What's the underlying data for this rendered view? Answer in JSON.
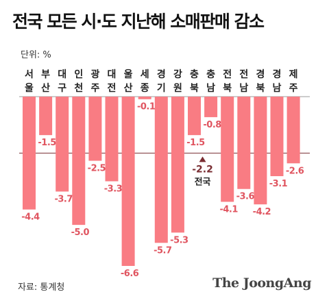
{
  "chart_data": {
    "type": "bar",
    "title": "전국 모든 시·도 지난해 소매판매 감소",
    "unit_label": "단위: %",
    "categories": [
      "서울",
      "부산",
      "대구",
      "인천",
      "광주",
      "대전",
      "울산",
      "세종",
      "경기",
      "강원",
      "충북",
      "충남",
      "전북",
      "전남",
      "경북",
      "경남",
      "제주"
    ],
    "values": [
      -4.4,
      -1.5,
      -3.7,
      -5.0,
      -2.5,
      -3.3,
      -6.6,
      -0.1,
      -5.7,
      -5.3,
      -1.5,
      -0.8,
      -4.1,
      -3.6,
      -4.2,
      -3.1,
      -2.6
    ],
    "value_labels": [
      "-4.4",
      "-1.5",
      "-3.7",
      "-5.0",
      "-2.5",
      "-3.3",
      "-6.6",
      "-0.1",
      "-5.7",
      "-5.3",
      "-1.5",
      "-0.8",
      "-4.1",
      "-3.6",
      "-4.2",
      "-3.1",
      "-2.6"
    ],
    "reference": {
      "value": -2.2,
      "label_value": "-2.2",
      "label_name": "전국"
    },
    "ylim": [
      -6.6,
      0
    ],
    "grid": false,
    "colors": {
      "bar": "#f97c83",
      "axis": "#9a9a9a",
      "reference_line": "#7a2e33",
      "reference_text": "#7a2e33",
      "value_label": "#e05560"
    }
  },
  "source": "자료: 통계청",
  "logo": "The JoongAng"
}
